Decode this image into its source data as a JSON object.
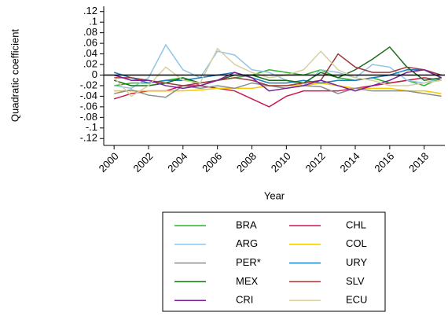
{
  "chart_data": {
    "type": "line",
    "x_label": "Year",
    "y_label": "Quadratic coefficient",
    "x": [
      2000,
      2001,
      2002,
      2003,
      2004,
      2005,
      2006,
      2007,
      2008,
      2009,
      2010,
      2011,
      2012,
      2013,
      2014,
      2015,
      2016,
      2017,
      2018,
      2019
    ],
    "xlim": [
      1999.4,
      2019.2
    ],
    "xticks": [
      2000,
      2002,
      2004,
      2006,
      2008,
      2010,
      2012,
      2014,
      2016,
      2018
    ],
    "ylim": [
      -0.133,
      0.13
    ],
    "yticks": [
      {
        "value": 0.12,
        "label": ".12"
      },
      {
        "value": 0.1,
        "label": ".1"
      },
      {
        "value": 0.08,
        "label": ".08"
      },
      {
        "value": 0.06,
        "label": ".06"
      },
      {
        "value": 0.04,
        "label": ".04"
      },
      {
        "value": 0.02,
        "label": ".02"
      },
      0,
      {
        "value": -0.02,
        "label": "-.02"
      },
      {
        "value": -0.04,
        "label": "-.04"
      },
      {
        "value": -0.06,
        "label": "-.06"
      },
      {
        "value": -0.08,
        "label": "-.08"
      },
      {
        "value": -0.1,
        "label": "-.1"
      },
      {
        "value": -0.12,
        "label": "-.12"
      }
    ],
    "yline": 0,
    "series": [
      {
        "name": "BRA",
        "color": "#2db32d",
        "values": [
          -0.02,
          -0.015,
          -0.015,
          -0.01,
          -0.005,
          -0.02,
          -0.01,
          -0.005,
          0,
          0.01,
          0.005,
          0,
          0.01,
          -0.005,
          -0.01,
          -0.005,
          -0.015,
          -0.01,
          -0.02,
          -0.005
        ]
      },
      {
        "name": "CHL",
        "color": "#c8194b",
        "values": [
          -0.045,
          -0.035,
          -0.03,
          -0.03,
          -0.02,
          -0.02,
          -0.025,
          -0.03,
          -0.045,
          -0.06,
          -0.04,
          -0.03,
          -0.03,
          -0.03,
          -0.025,
          -0.02,
          -0.015,
          -0.01,
          -0.005,
          -0.01
        ]
      },
      {
        "name": "ARG",
        "color": "#8fc4e8",
        "values": [
          -0.02,
          -0.025,
          -0.005,
          0.057,
          0.01,
          -0.005,
          0.045,
          0.038,
          0.01,
          0.005,
          -0.01,
          -0.02,
          0.01,
          0.005,
          -0.005,
          0.02,
          0.015,
          -0.01,
          -0.015,
          -0.005
        ]
      },
      {
        "name": "COL",
        "color": "#f5c800",
        "values": [
          -0.03,
          -0.03,
          -0.03,
          -0.03,
          -0.03,
          -0.028,
          -0.025,
          -0.025,
          -0.025,
          -0.02,
          -0.02,
          -0.02,
          -0.015,
          -0.02,
          -0.025,
          -0.025,
          -0.025,
          -0.03,
          -0.03,
          -0.035
        ]
      },
      {
        "name": "PER*",
        "color": "#8c8c8c",
        "values": [
          -0.035,
          -0.028,
          -0.038,
          -0.042,
          -0.02,
          -0.025,
          -0.02,
          -0.025,
          -0.015,
          -0.02,
          -0.025,
          -0.02,
          -0.022,
          -0.035,
          -0.025,
          -0.03,
          -0.03,
          -0.03,
          -0.035,
          -0.04
        ]
      },
      {
        "name": "URY",
        "color": "#1a7fbf",
        "values": [
          0.005,
          -0.005,
          -0.015,
          -0.01,
          -0.01,
          -0.005,
          0,
          0.005,
          -0.005,
          -0.015,
          -0.015,
          -0.01,
          -0.015,
          -0.01,
          -0.01,
          -0.005,
          0,
          0.01,
          0.01,
          -0.005
        ]
      },
      {
        "name": "MEX",
        "color": "#1a6b1a",
        "values": [
          -0.01,
          -0.02,
          -0.02,
          -0.015,
          -0.005,
          -0.015,
          -0.01,
          0,
          0,
          -0.01,
          -0.01,
          -0.015,
          0.005,
          -0.005,
          0.01,
          0.03,
          0.053,
          0.015,
          -0.01,
          -0.005
        ]
      },
      {
        "name": "SLV",
        "color": "#9b3a3a",
        "values": [
          -0.005,
          -0.005,
          -0.01,
          -0.015,
          -0.02,
          -0.015,
          -0.01,
          -0.005,
          -0.01,
          -0.02,
          -0.02,
          -0.015,
          -0.01,
          0.04,
          0.015,
          0.005,
          0.005,
          0.015,
          0.01,
          0
        ]
      },
      {
        "name": "CRI",
        "color": "#7b1f9a",
        "values": [
          0,
          -0.01,
          -0.01,
          -0.02,
          -0.025,
          -0.02,
          -0.01,
          0.005,
          -0.005,
          -0.03,
          -0.025,
          -0.02,
          -0.01,
          -0.02,
          -0.03,
          -0.02,
          -0.01,
          0.005,
          0.01,
          -0.005
        ]
      },
      {
        "name": "ECU",
        "color": "#d8cfa0",
        "values": [
          -0.005,
          -0.04,
          -0.02,
          0.015,
          -0.01,
          -0.015,
          0.05,
          0.02,
          0.005,
          -0.005,
          0,
          0.01,
          0.045,
          0.01,
          -0.005,
          -0.01,
          -0.02,
          -0.02,
          -0.015,
          -0.01
        ]
      }
    ]
  }
}
